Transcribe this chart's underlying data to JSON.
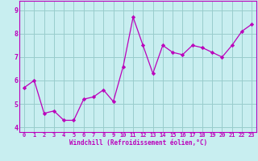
{
  "xlabel": "Windchill (Refroidissement éolien,°C)",
  "xlim": [
    -0.5,
    23.5
  ],
  "ylim": [
    3.8,
    9.4
  ],
  "xticks": [
    0,
    1,
    2,
    3,
    4,
    5,
    6,
    7,
    8,
    9,
    10,
    11,
    12,
    13,
    14,
    15,
    16,
    17,
    18,
    19,
    20,
    21,
    22,
    23
  ],
  "yticks": [
    4,
    5,
    6,
    7,
    8,
    9
  ],
  "bg_color": "#c8eef0",
  "line_color": "#bb00bb",
  "grid_color": "#99cccc",
  "x_data": [
    0,
    1,
    2,
    3,
    4,
    5,
    6,
    7,
    8,
    9,
    10,
    11,
    12,
    13,
    14,
    15,
    16,
    17,
    18,
    19,
    20,
    21,
    22,
    23
  ],
  "y_data": [
    5.7,
    6.0,
    4.6,
    4.7,
    4.3,
    4.3,
    5.2,
    5.3,
    5.6,
    5.1,
    6.6,
    8.7,
    7.5,
    6.3,
    7.5,
    7.2,
    7.1,
    7.5,
    7.4,
    7.2,
    7.0,
    7.5,
    8.1,
    8.4
  ]
}
